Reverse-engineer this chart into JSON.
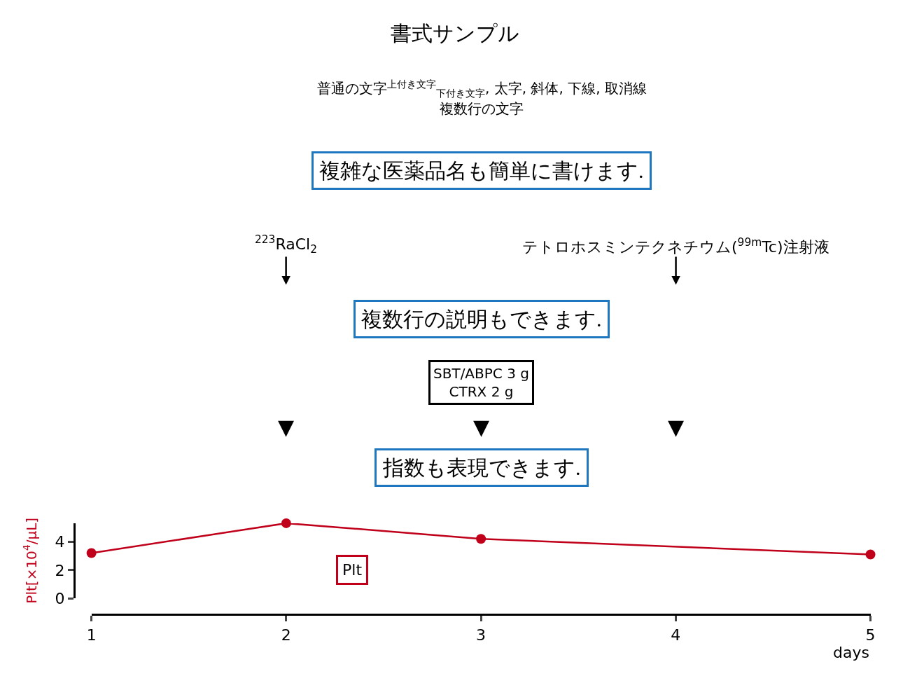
{
  "chart_data": {
    "type": "line",
    "title": "書式サンプル",
    "subtitle": "普通の文字$^{上付き文字}$$_{下付き文字}$, 太字, 斜体, 下線, 取消線",
    "x": [
      1,
      2,
      3,
      5
    ],
    "series": [
      {
        "color": "#c0001a",
        "values": [
          3.2,
          5.3,
          4.2,
          3.1
        ]
      }
    ],
    "xlabel": "days",
    "ylabel": "Plt[×10$^{4}$/μL]",
    "xlim": [
      1,
      5
    ],
    "xticks": [
      1,
      2,
      3,
      4,
      5
    ],
    "ylim": [
      0,
      5.3
    ],
    "yticks": [
      0,
      2,
      4
    ],
    "marker": "circle",
    "line_style": "solid",
    "annotations": [
      "複雑な医薬品名も簡単に書けます.",
      "$^{223}$RaCl$_{2}$",
      "テトロホスミンテクネチウム($^{99m}$Tc)注射液",
      "複数行の説明もできます.",
      "SBT/ABPC 3 g\nCTRX 2 g",
      "▼",
      "▼",
      "▼",
      "指数も表現できます.",
      "Plt",
      "複数行の文字"
    ]
  }
}
